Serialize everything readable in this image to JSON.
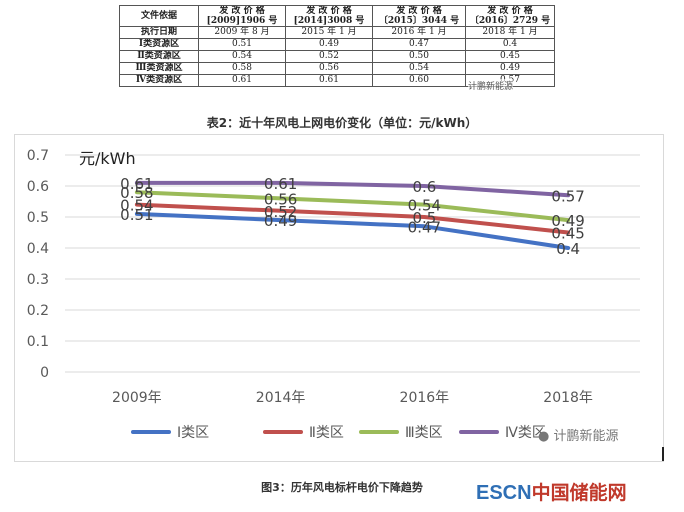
{
  "table": {
    "header_label": "文件依据",
    "date_label": "执行日期",
    "documents": [
      {
        "title": "发 改 价 格",
        "ref": "[2009]1906 号",
        "date": "2009 年 8 月"
      },
      {
        "title": "发 改 价 格",
        "ref": "[2014]3008 号",
        "date": "2015 年 1 月"
      },
      {
        "title": "发 改 价 格",
        "ref": "〔2015〕3044 号",
        "date": "2016 年 1 月"
      },
      {
        "title": "发 改 价 格",
        "ref": "〔2016〕2729 号",
        "date": "2018 年 1 月"
      }
    ],
    "rows": [
      {
        "label": "Ⅰ类资源区",
        "values": [
          "0.51",
          "0.49",
          "0.47",
          "0.4"
        ]
      },
      {
        "label": "Ⅱ类资源区",
        "values": [
          "0.54",
          "0.52",
          "0.50",
          "0.45"
        ]
      },
      {
        "label": "Ⅲ类资源区",
        "values": [
          "0.58",
          "0.56",
          "0.54",
          "0.49"
        ]
      },
      {
        "label": "Ⅳ类资源区",
        "values": [
          "0.61",
          "0.61",
          "0.60",
          "0.57"
        ]
      }
    ],
    "watermark": "计鹏新能源",
    "caption": "表2：近十年风电上网电价变化（单位：元/kWh）"
  },
  "chart_data": {
    "type": "line",
    "title": "",
    "ylabel": "元/kWh",
    "xlabel": "",
    "categories": [
      "2009年",
      "2014年",
      "2016年",
      "2018年"
    ],
    "ylim": [
      0,
      0.7
    ],
    "yticks": [
      "0",
      "0.1",
      "0.2",
      "0.3",
      "0.4",
      "0.5",
      "0.6",
      "0.7"
    ],
    "legend_position": "bottom",
    "series": [
      {
        "name": "Ⅰ类区",
        "color": "#4472c4",
        "values": [
          0.51,
          0.49,
          0.47,
          0.4
        ],
        "labels": [
          "0.51",
          "0.49",
          "0.47",
          "0.4"
        ]
      },
      {
        "name": "Ⅱ类区",
        "color": "#c0504d",
        "values": [
          0.54,
          0.52,
          0.5,
          0.45
        ],
        "labels": [
          "0.54",
          "0.52",
          "0.5",
          "0.45"
        ]
      },
      {
        "name": "Ⅲ类区",
        "color": "#9bbb59",
        "values": [
          0.58,
          0.56,
          0.54,
          0.49
        ],
        "labels": [
          "0.58",
          "0.56",
          "0.54",
          "0.49"
        ]
      },
      {
        "name": "Ⅳ类区",
        "color": "#8064a2",
        "values": [
          0.61,
          0.61,
          0.6,
          0.57
        ],
        "labels": [
          "0.61",
          "0.61",
          "0.6",
          "0.57"
        ]
      }
    ]
  },
  "chart_watermark": "计鹏新能源",
  "chart_caption": "图3：历年风电标杆电价下降趋势",
  "logo": {
    "brand": "ESCN",
    "site": "中国储能网"
  }
}
